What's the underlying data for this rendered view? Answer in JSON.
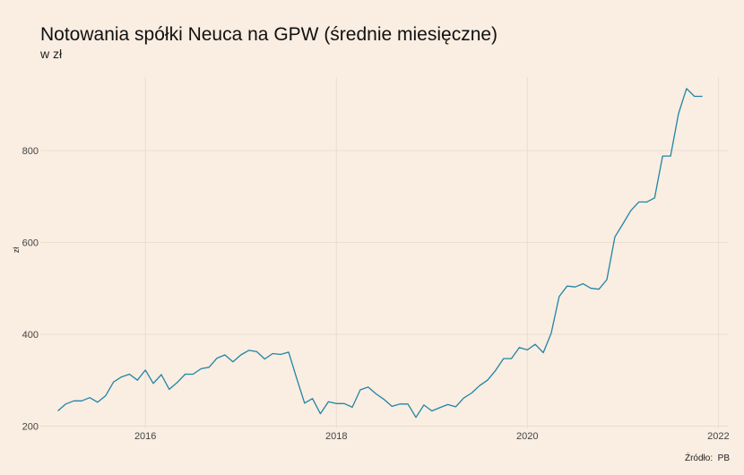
{
  "chart_data": {
    "type": "line",
    "title": "Notowania spółki Neuca na GPW (średnie miesięczne)",
    "subtitle": "w zł",
    "xlabel": "",
    "ylabel": "zł",
    "caption": "Źródło:  PB",
    "x_ticks": [
      2016,
      2018,
      2020,
      2022
    ],
    "x_tick_labels": [
      "2016",
      "2018",
      "2020",
      "2022"
    ],
    "y_ticks": [
      200,
      400,
      600,
      800
    ],
    "y_tick_labels": [
      "200",
      "400",
      "600",
      "800"
    ],
    "xlim": [
      2014.9,
      2022.1
    ],
    "ylim": [
      195,
      960
    ],
    "grid": true,
    "line_color": "#1f86a6",
    "background_color": "#faede1",
    "series": [
      {
        "x": [
          2015.083,
          2015.167,
          2015.25,
          2015.333,
          2015.417,
          2015.5,
          2015.583,
          2015.667,
          2015.75,
          2015.833,
          2015.917,
          2016.0,
          2016.083,
          2016.167,
          2016.25,
          2016.333,
          2016.417,
          2016.5,
          2016.583,
          2016.667,
          2016.75,
          2016.833,
          2016.917,
          2017.0,
          2017.083,
          2017.167,
          2017.25,
          2017.333,
          2017.417,
          2017.5,
          2017.583,
          2017.667,
          2017.75,
          2017.833,
          2017.917,
          2018.0,
          2018.083,
          2018.167,
          2018.25,
          2018.333,
          2018.417,
          2018.5,
          2018.583,
          2018.667,
          2018.75,
          2018.833,
          2018.917,
          2019.0,
          2019.083,
          2019.167,
          2019.25,
          2019.333,
          2019.417,
          2019.5,
          2019.583,
          2019.667,
          2019.75,
          2019.833,
          2019.917,
          2020.0,
          2020.083,
          2020.167,
          2020.25,
          2020.333,
          2020.417,
          2020.5,
          2020.583,
          2020.667,
          2020.75,
          2020.833,
          2020.917,
          2021.0,
          2021.083,
          2021.167,
          2021.25,
          2021.333,
          2021.417,
          2021.5,
          2021.583,
          2021.667,
          2021.75,
          2021.833
        ],
        "y": [
          233,
          248,
          255,
          255,
          262,
          252,
          266,
          296,
          307,
          313,
          300,
          322,
          293,
          312,
          280,
          295,
          313,
          313,
          325,
          328,
          348,
          355,
          340,
          355,
          365,
          362,
          346,
          358,
          356,
          361,
          305,
          250,
          260,
          227,
          253,
          249,
          249,
          241,
          279,
          285,
          270,
          258,
          243,
          248,
          248,
          219,
          246,
          233,
          240,
          247,
          242,
          261,
          272,
          288,
          300,
          321,
          347,
          347,
          371,
          366,
          378,
          360,
          402,
          482,
          505,
          503,
          510,
          500,
          498,
          519,
          612,
          640,
          669,
          688,
          688,
          697,
          788,
          788,
          880,
          935,
          918,
          918
        ]
      }
    ]
  }
}
